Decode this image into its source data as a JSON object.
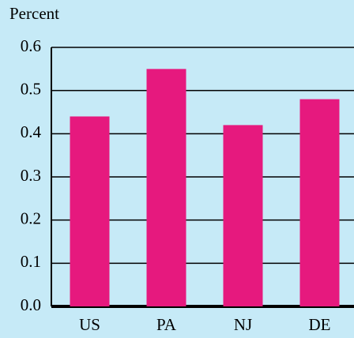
{
  "chart_data": {
    "type": "bar",
    "y_label": "Percent",
    "categories": [
      "US",
      "PA",
      "NJ",
      "DE"
    ],
    "values": [
      0.44,
      0.55,
      0.42,
      0.48
    ],
    "color": "#e6197e",
    "ylim": [
      0,
      0.6
    ],
    "yticks": [
      {
        "value": 0,
        "label": "0.0"
      },
      0.1,
      0.2,
      0.3,
      0.4,
      0.5,
      0.6
    ],
    "grid": true
  }
}
